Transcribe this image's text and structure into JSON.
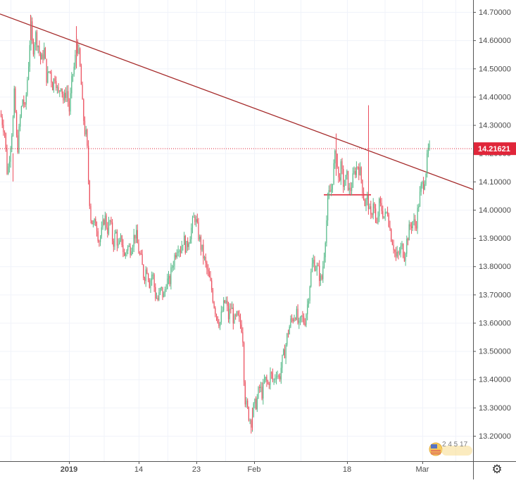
{
  "chart_data": {
    "type": "candlestick",
    "x_labels": [
      "2019",
      "14",
      "23",
      "Feb",
      "18",
      "Mar"
    ],
    "y_ticks": [
      "14.70000",
      "14.60000",
      "14.50000",
      "14.40000",
      "14.30000",
      "14.20000",
      "14.10000",
      "14.00000",
      "13.90000",
      "13.80000",
      "13.70000",
      "13.60000",
      "13.50000",
      "13.40000",
      "13.30000",
      "13.20000"
    ],
    "ylim": [
      13.155,
      14.74
    ],
    "last_price": 14.21621,
    "last_price_label": "14.21621",
    "grid": true,
    "colors": {
      "up": "#53b987",
      "down": "#eb4d5c",
      "trendline": "#a52a2a",
      "price_line": "#e0263a"
    },
    "price_path": [
      [
        0,
        14.34
      ],
      [
        6,
        14.28
      ],
      [
        10,
        14.12
      ],
      [
        14,
        14.22
      ],
      [
        18,
        14.32
      ],
      [
        20,
        14.42
      ],
      [
        24,
        14.2
      ],
      [
        28,
        14.32
      ],
      [
        32,
        14.4
      ],
      [
        35,
        14.35
      ],
      [
        38,
        14.45
      ],
      [
        41,
        14.55
      ],
      [
        43,
        14.66
      ],
      [
        46,
        14.56
      ],
      [
        50,
        14.62
      ],
      [
        54,
        14.58
      ],
      [
        58,
        14.52
      ],
      [
        62,
        14.57
      ],
      [
        66,
        14.46
      ],
      [
        70,
        14.5
      ],
      [
        74,
        14.44
      ],
      [
        78,
        14.48
      ],
      [
        82,
        14.4
      ],
      [
        86,
        14.45
      ],
      [
        90,
        14.38
      ],
      [
        94,
        14.43
      ],
      [
        98,
        14.35
      ],
      [
        102,
        14.47
      ],
      [
        106,
        14.52
      ],
      [
        108,
        14.6
      ],
      [
        111,
        14.56
      ],
      [
        114,
        14.48
      ],
      [
        117,
        14.35
      ],
      [
        120,
        14.28
      ],
      [
        123,
        14.25
      ],
      [
        124,
        14.15
      ],
      [
        126,
        14.07
      ],
      [
        128,
        13.98
      ],
      [
        132,
        13.94
      ],
      [
        136,
        13.96
      ],
      [
        140,
        13.89
      ],
      [
        144,
        13.92
      ],
      [
        148,
        13.98
      ],
      [
        152,
        13.93
      ],
      [
        156,
        13.96
      ],
      [
        160,
        13.88
      ],
      [
        164,
        13.92
      ],
      [
        168,
        13.86
      ],
      [
        172,
        13.9
      ],
      [
        176,
        13.83
      ],
      [
        180,
        13.87
      ],
      [
        184,
        13.86
      ],
      [
        188,
        13.89
      ],
      [
        192,
        13.92
      ],
      [
        196,
        13.86
      ],
      [
        200,
        13.82
      ],
      [
        204,
        13.76
      ],
      [
        208,
        13.8
      ],
      [
        212,
        13.74
      ],
      [
        216,
        13.78
      ],
      [
        220,
        13.7
      ],
      [
        224,
        13.68
      ],
      [
        228,
        13.72
      ],
      [
        232,
        13.69
      ],
      [
        236,
        13.75
      ],
      [
        240,
        13.74
      ],
      [
        244,
        13.8
      ],
      [
        248,
        13.84
      ],
      [
        252,
        13.88
      ],
      [
        256,
        13.86
      ],
      [
        260,
        13.9
      ],
      [
        264,
        13.86
      ],
      [
        268,
        13.9
      ],
      [
        272,
        13.94
      ],
      [
        276,
        13.98
      ],
      [
        280,
        13.93
      ],
      [
        284,
        13.88
      ],
      [
        288,
        13.84
      ],
      [
        292,
        13.8
      ],
      [
        296,
        13.76
      ],
      [
        300,
        13.72
      ],
      [
        304,
        13.66
      ],
      [
        308,
        13.62
      ],
      [
        312,
        13.6
      ],
      [
        316,
        13.65
      ],
      [
        320,
        13.68
      ],
      [
        324,
        13.62
      ],
      [
        328,
        13.66
      ],
      [
        332,
        13.6
      ],
      [
        336,
        13.62
      ],
      [
        340,
        13.6
      ],
      [
        344,
        13.58
      ],
      [
        346,
        13.42
      ],
      [
        348,
        13.32
      ],
      [
        352,
        13.28
      ],
      [
        356,
        13.25
      ],
      [
        360,
        13.3
      ],
      [
        364,
        13.32
      ],
      [
        368,
        13.37
      ],
      [
        372,
        13.35
      ],
      [
        376,
        13.4
      ],
      [
        380,
        13.38
      ],
      [
        384,
        13.42
      ],
      [
        388,
        13.39
      ],
      [
        392,
        13.43
      ],
      [
        396,
        13.4
      ],
      [
        400,
        13.46
      ],
      [
        404,
        13.5
      ],
      [
        408,
        13.56
      ],
      [
        412,
        13.6
      ],
      [
        416,
        13.62
      ],
      [
        420,
        13.64
      ],
      [
        424,
        13.58
      ],
      [
        428,
        13.62
      ],
      [
        432,
        13.6
      ],
      [
        436,
        13.66
      ],
      [
        440,
        13.75
      ],
      [
        444,
        13.82
      ],
      [
        448,
        13.8
      ],
      [
        452,
        13.78
      ],
      [
        456,
        13.74
      ],
      [
        460,
        13.85
      ],
      [
        463,
        13.95
      ],
      [
        466,
        14.05
      ],
      [
        470,
        14.07
      ],
      [
        474,
        14.16
      ],
      [
        477,
        14.22
      ],
      [
        480,
        14.1
      ],
      [
        484,
        14.15
      ],
      [
        488,
        14.08
      ],
      [
        492,
        14.12
      ],
      [
        496,
        14.06
      ],
      [
        500,
        14.1
      ],
      [
        504,
        14.14
      ],
      [
        508,
        14.16
      ],
      [
        512,
        14.12
      ],
      [
        516,
        14.05
      ],
      [
        518,
        14.02
      ],
      [
        522,
        14.04
      ],
      [
        526,
        13.96
      ],
      [
        530,
        14.04
      ],
      [
        534,
        13.92
      ],
      [
        538,
        14.02
      ],
      [
        542,
        14.0
      ],
      [
        546,
        13.97
      ],
      [
        550,
        14.0
      ],
      [
        554,
        13.92
      ],
      [
        558,
        13.88
      ],
      [
        562,
        13.83
      ],
      [
        566,
        13.84
      ],
      [
        570,
        13.87
      ],
      [
        574,
        13.84
      ],
      [
        578,
        13.9
      ],
      [
        582,
        13.94
      ],
      [
        586,
        13.96
      ],
      [
        590,
        13.94
      ],
      [
        594,
        14.02
      ],
      [
        598,
        14.08
      ],
      [
        602,
        14.1
      ],
      [
        605,
        14.15
      ],
      [
        608,
        14.21
      ],
      [
        612,
        14.216
      ]
    ],
    "spikes": [
      {
        "x": 523,
        "low": 14.03,
        "high": 14.37
      },
      {
        "x": 358,
        "low": 13.22,
        "high": 13.3
      },
      {
        "x": 43,
        "low": 14.6,
        "high": 14.69
      },
      {
        "x": 108,
        "low": 14.5,
        "high": 14.65
      },
      {
        "x": 477,
        "low": 14.12,
        "high": 14.27
      },
      {
        "x": 18,
        "low": 14.1,
        "high": 14.2
      }
    ],
    "trendline": {
      "x1": 0,
      "y1": 14.693,
      "x2": 672,
      "y2": 14.072
    },
    "horizontal_segment": {
      "x1": 460,
      "x2": 527,
      "y": 14.053
    }
  },
  "toolbar": {
    "settings_icon": "gear-icon",
    "settings_glyph": "⚙"
  },
  "watermark": {
    "digits": "2 4 5 17"
  }
}
